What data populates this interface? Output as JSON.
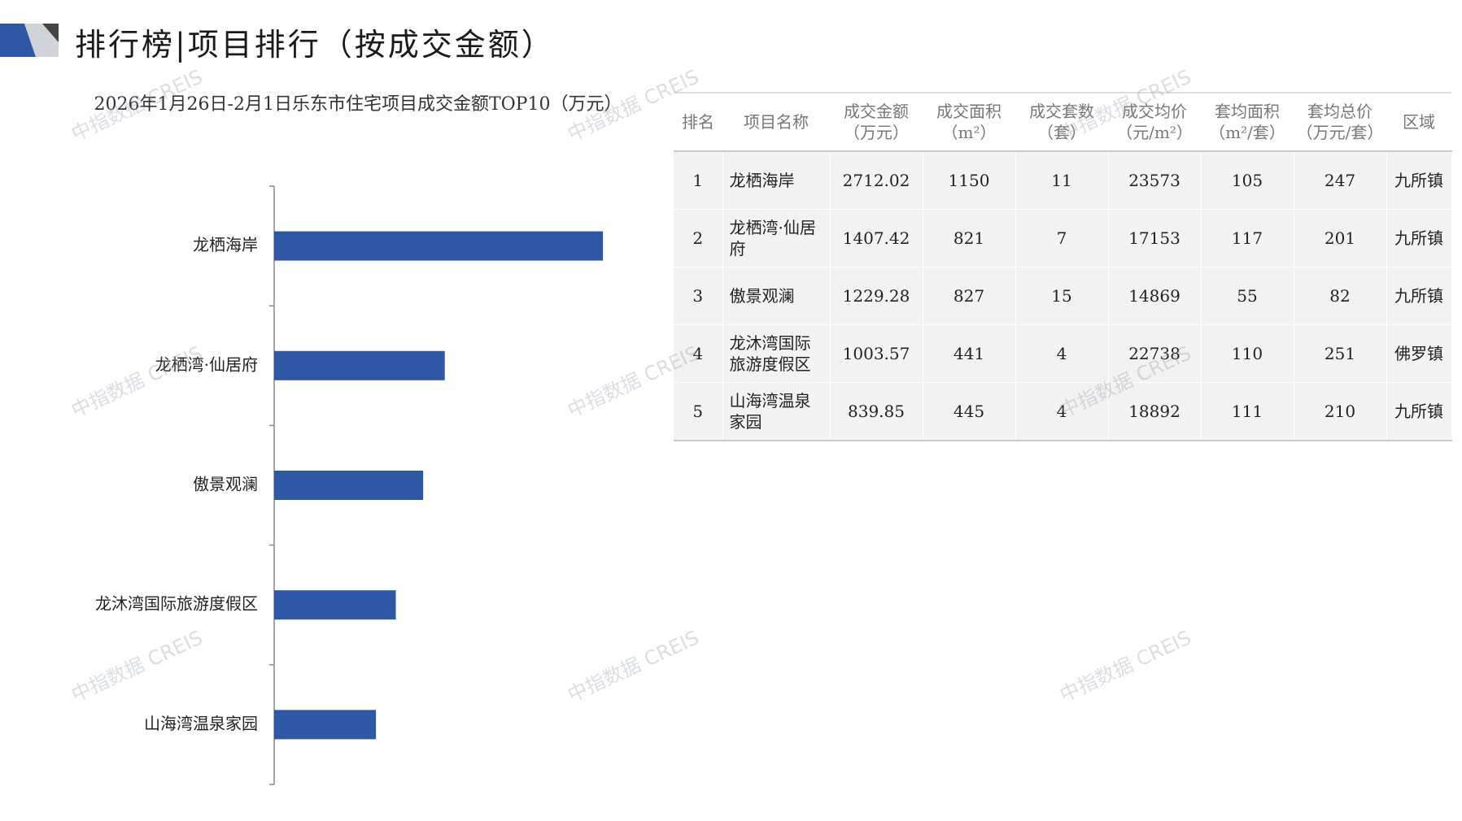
{
  "header": {
    "title": "排行榜|项目排行（按成交金额）"
  },
  "watermark": "中指数据 CREIS",
  "chart_data": {
    "type": "bar",
    "orientation": "horizontal",
    "title": "2026年1月26日-2月1日乐东市住宅项目成交金额TOP10（万元）",
    "categories": [
      "龙栖海岸",
      "龙栖湾·仙居府",
      "傲景观澜",
      "龙沐湾国际旅游度假区",
      "山海湾温泉家园"
    ],
    "values": [
      2712.02,
      1407.42,
      1229.28,
      1003.57,
      839.85
    ],
    "color": "#2e57a6",
    "xlim": [
      0,
      3000
    ]
  },
  "table": {
    "columns": [
      "排名",
      "项目名称",
      "成交金额\n（万元）",
      "成交面积\n（m²）",
      "成交套数\n（套）",
      "成交均价\n（元/m²）",
      "套均面积\n（m²/套）",
      "套均总价\n（万元/套）",
      "区域"
    ],
    "rows": [
      [
        "1",
        "龙栖海岸",
        "2712.02",
        "1150",
        "11",
        "23573",
        "105",
        "247",
        "九所镇"
      ],
      [
        "2",
        "龙栖湾·仙居府",
        "1407.42",
        "821",
        "7",
        "17153",
        "117",
        "201",
        "九所镇"
      ],
      [
        "3",
        "傲景观澜",
        "1229.28",
        "827",
        "15",
        "14869",
        "55",
        "82",
        "九所镇"
      ],
      [
        "4",
        "龙沐湾国际旅游度假区",
        "1003.57",
        "441",
        "4",
        "22738",
        "110",
        "251",
        "佛罗镇"
      ],
      [
        "5",
        "山海湾温泉家园",
        "839.85",
        "445",
        "4",
        "18892",
        "111",
        "210",
        "九所镇"
      ]
    ]
  }
}
